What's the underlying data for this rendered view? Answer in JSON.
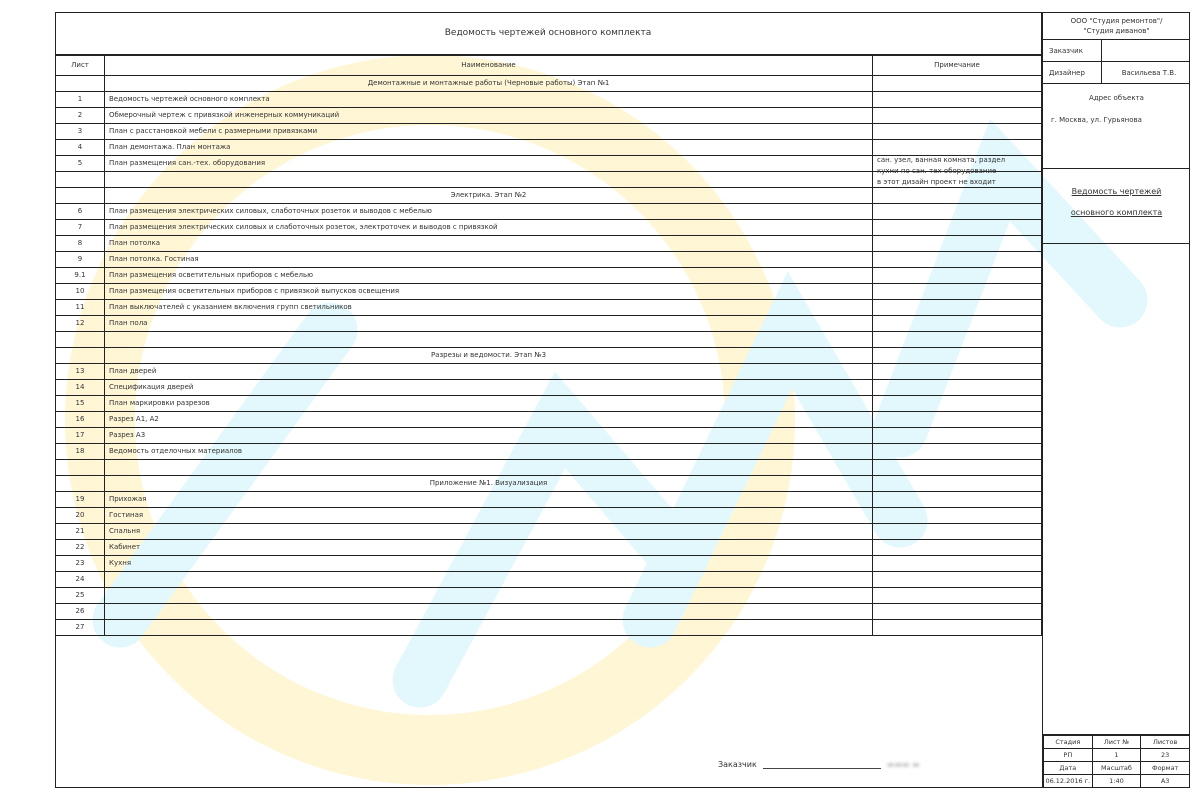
{
  "document": {
    "title": "Ведомость чертежей основного комплекта",
    "headers": {
      "sheet": "Лист",
      "name": "Наименование",
      "note": "Примечание"
    },
    "rows": [
      {
        "num": "",
        "name": "Демонтажные и монтажные работы (Черновые работы) Этап №1",
        "section": true
      },
      {
        "num": "1",
        "name": "Ведомость чертежей основного комплекта"
      },
      {
        "num": "2",
        "name": "Обмерочный чертеж с привязкой инженерных коммуникаций"
      },
      {
        "num": "3",
        "name": "План с расстановкой мебели с размерными привязками"
      },
      {
        "num": "4",
        "name": "План демонтажа. План монтажа"
      },
      {
        "num": "5",
        "name": "План размещения сан.-тех. оборудования"
      },
      {
        "num": "",
        "name": ""
      },
      {
        "num": "",
        "name": "Электрика. Этап №2",
        "section": true
      },
      {
        "num": "6",
        "name": "План размещения электрических силовых, слаботочных розеток и выводов с мебелью"
      },
      {
        "num": "7",
        "name": "План размещения электрических силовых и слаботочных розеток, электроточек и выводов с привязкой"
      },
      {
        "num": "8",
        "name": "План потолка"
      },
      {
        "num": "9",
        "name": "План потолка. Гостиная"
      },
      {
        "num": "9.1",
        "name": "План размещения осветительных приборов с мебелью"
      },
      {
        "num": "10",
        "name": "План размещения осветительных приборов с привязкой выпусков освещения"
      },
      {
        "num": "11",
        "name": "План выключателей с указанием включения групп светильников"
      },
      {
        "num": "12",
        "name": "План пола"
      },
      {
        "num": "",
        "name": ""
      },
      {
        "num": "",
        "name": "Разрезы и ведомости. Этап №3",
        "section": true
      },
      {
        "num": "13",
        "name": "План дверей"
      },
      {
        "num": "14",
        "name": "Спецификация дверей"
      },
      {
        "num": "15",
        "name": "План маркировки разрезов"
      },
      {
        "num": "16",
        "name": "Разрез А1, А2"
      },
      {
        "num": "17",
        "name": "Разрез А3"
      },
      {
        "num": "18",
        "name": "Ведомость отделочных материалов"
      },
      {
        "num": "",
        "name": ""
      },
      {
        "num": "",
        "name": "Приложение №1. Визуализация",
        "section": true
      },
      {
        "num": "19",
        "name": "Прихожая"
      },
      {
        "num": "20",
        "name": "Гостиная"
      },
      {
        "num": "21",
        "name": "Спальня"
      },
      {
        "num": "22",
        "name": "Кабинет"
      },
      {
        "num": "23",
        "name": "Кухня"
      },
      {
        "num": "24",
        "name": ""
      },
      {
        "num": "25",
        "name": ""
      },
      {
        "num": "26",
        "name": ""
      },
      {
        "num": "27",
        "name": ""
      }
    ],
    "note_text": [
      "сан. узел, ванная комната, раздел",
      "кухни по сан. тех оборудование",
      "в этот дизайн проект не входит"
    ]
  },
  "side": {
    "company": [
      "ООО \"Студия ремонтов\"/",
      "\"Студия диванов\""
    ],
    "client_label": "Заказчик",
    "client_value": "",
    "designer_label": "Дизайнер",
    "designer_value": "Васильева Т.В.",
    "address_label": "Адрес объекта",
    "address_value": "г. Москва, ул. Гурьянова",
    "sheet_title": [
      "Ведомость чертежей",
      "основного комплекта"
    ],
    "stamp": {
      "headers1": [
        "Стадия",
        "Лист №",
        "Листов"
      ],
      "values1": [
        "РП",
        "1",
        "23"
      ],
      "headers2": [
        "Дата",
        "Масштаб",
        "Формат"
      ],
      "values2": [
        "06.12.2016 г.",
        "1:40",
        "А3"
      ]
    }
  },
  "signature": {
    "label": "Заказчик"
  },
  "colors": {
    "watermark_yellow": "#fff3c4",
    "watermark_cyan": "#d9f6fb",
    "line": "#222222"
  }
}
